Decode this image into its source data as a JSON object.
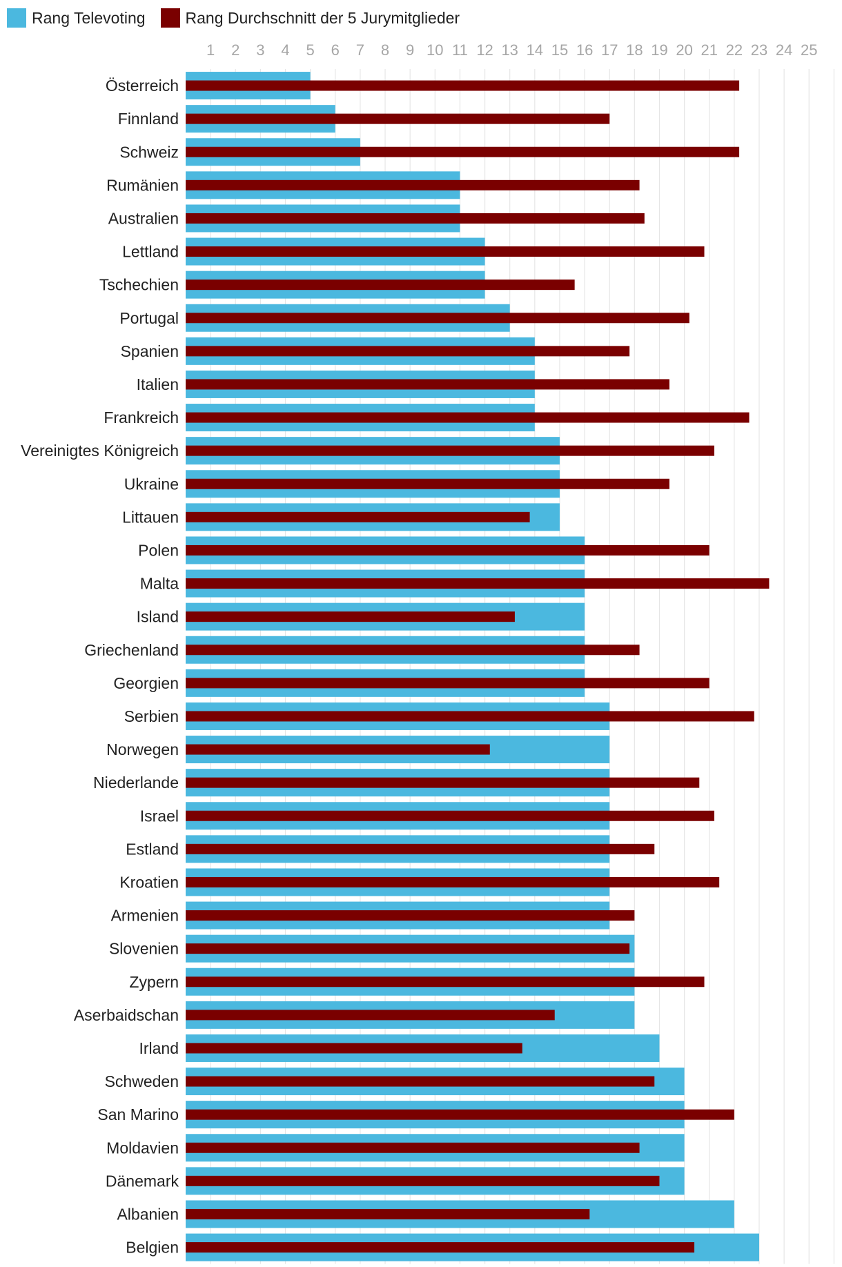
{
  "chart_data": {
    "type": "bar",
    "orientation": "horizontal",
    "title": "",
    "xlabel": "",
    "ylabel": "",
    "xlim": [
      0,
      26
    ],
    "ticks": [
      1,
      2,
      3,
      4,
      5,
      6,
      7,
      8,
      9,
      10,
      11,
      12,
      13,
      14,
      15,
      16,
      17,
      18,
      19,
      20,
      21,
      22,
      23,
      24,
      25
    ],
    "grid": true,
    "legend": "top-left",
    "categories": [
      "Österreich",
      "Finnland",
      "Schweiz",
      "Rumänien",
      "Australien",
      "Lettland",
      "Tschechien",
      "Portugal",
      "Spanien",
      "Italien",
      "Frankreich",
      "Vereinigtes Königreich",
      "Ukraine",
      "Littauen",
      "Polen",
      "Malta",
      "Island",
      "Griechenland",
      "Georgien",
      "Serbien",
      "Norwegen",
      "Niederlande",
      "Israel",
      "Estland",
      "Kroatien",
      "Armenien",
      "Slovenien",
      "Zypern",
      "Aserbaidschan",
      "Irland",
      "Schweden",
      "San Marino",
      "Moldavien",
      "Dänemark",
      "Albanien",
      "Belgien"
    ],
    "series": [
      {
        "name": "Rang Televoting",
        "color": "#4bb8df",
        "values": [
          5,
          6,
          7,
          11,
          11,
          12,
          12,
          13,
          14,
          14,
          14,
          15,
          15,
          15,
          16,
          16,
          16,
          16,
          16,
          17,
          17,
          17,
          17,
          17,
          17,
          17,
          18,
          18,
          18,
          19,
          20,
          20,
          20,
          20,
          22,
          23
        ]
      },
      {
        "name": "Rang Durchschnitt der 5 Jurymitglieder",
        "color": "#7a0000",
        "values": [
          22.2,
          17,
          22.2,
          18.2,
          18.4,
          20.8,
          15.6,
          20.2,
          17.8,
          19.4,
          22.6,
          21.2,
          19.4,
          13.8,
          21,
          23.4,
          13.2,
          18.2,
          21,
          22.8,
          12.2,
          20.6,
          21.2,
          18.8,
          21.4,
          18,
          17.8,
          20.8,
          14.8,
          13.5,
          18.8,
          22,
          18.2,
          19,
          16.2,
          20.4
        ]
      }
    ]
  },
  "colors": {
    "grid": "#e6e6e6",
    "tick_text": "#a6a6a6",
    "label_text": "#222222"
  }
}
